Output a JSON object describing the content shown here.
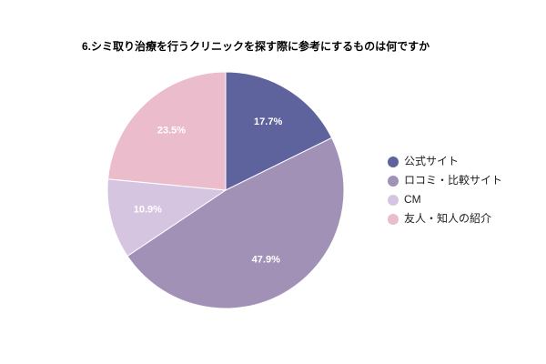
{
  "chart_data": {
    "type": "pie",
    "title": "6.シミ取り治療を行うクリニックを探す際に参考にするものは何ですか",
    "categories": [
      "公式サイト",
      "ロコミ・比較サイト",
      "CM",
      "友人・知人の紹介"
    ],
    "values": [
      17.7,
      47.9,
      10.9,
      23.5
    ],
    "value_labels": [
      "17.7%",
      "47.9%",
      "10.9%",
      "23.5%"
    ],
    "colors": [
      "#5f639d",
      "#a291b7",
      "#d6c5e0",
      "#ebbccb"
    ],
    "legend": "right"
  }
}
